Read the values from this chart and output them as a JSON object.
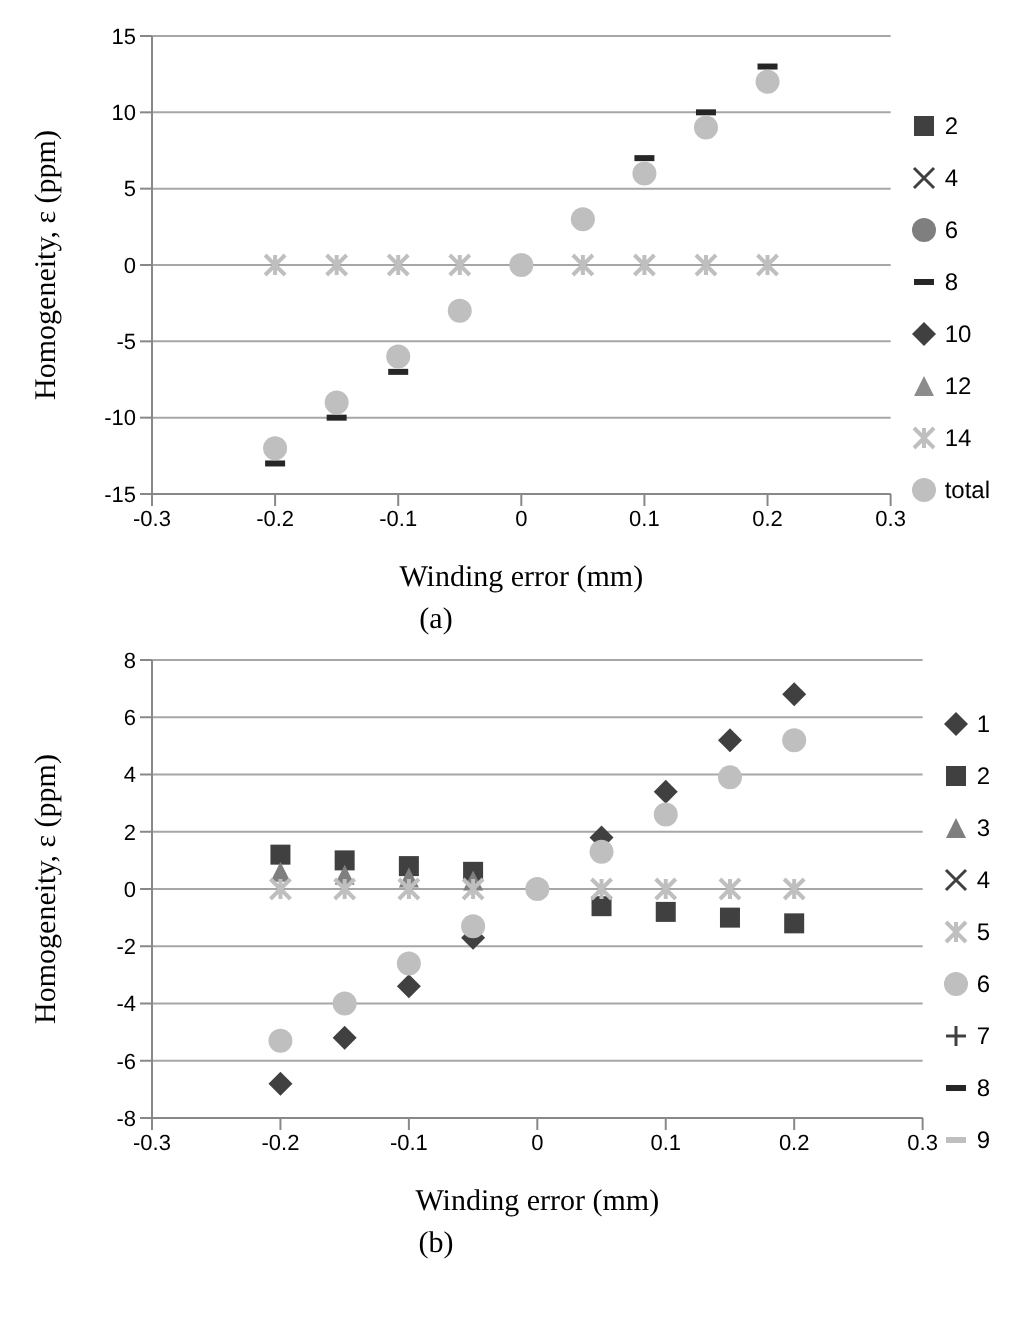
{
  "chart_data": [
    {
      "type": "scatter",
      "annotations": [
        "(a)"
      ],
      "xlabel": "Winding error (mm)",
      "ylabel": "Homogeneity, ε (ppm)",
      "x": [
        -0.2,
        -0.15,
        -0.1,
        -0.05,
        0,
        0.05,
        0.1,
        0.15,
        0.2
      ],
      "xlim": [
        -0.3,
        0.3
      ],
      "xticks": [
        -0.3,
        -0.2,
        -0.1,
        0,
        0.1,
        0.2,
        0.3
      ],
      "ylim": [
        -15,
        15
      ],
      "yticks": [
        -15,
        -10,
        -5,
        0,
        5,
        10,
        15
      ],
      "grid": "y",
      "legend": "right",
      "series": [
        {
          "name": "2",
          "color": "#404040",
          "marker": "square",
          "values": [
            null,
            null,
            null,
            null,
            null,
            null,
            null,
            null,
            null
          ]
        },
        {
          "name": "4",
          "color": "#404040",
          "marker": "x",
          "values": [
            null,
            null,
            null,
            null,
            null,
            null,
            null,
            null,
            null
          ]
        },
        {
          "name": "6",
          "color": "#7f7f7f",
          "marker": "circle",
          "values": [
            null,
            null,
            null,
            null,
            null,
            null,
            null,
            null,
            null
          ]
        },
        {
          "name": "8",
          "color": "#262626",
          "values": [
            -13,
            -10,
            -7,
            null,
            null,
            null,
            7,
            10,
            13
          ]
        },
        {
          "name": "10",
          "color": "#404040",
          "marker": "diamond",
          "values": [
            null,
            null,
            null,
            null,
            null,
            null,
            null,
            null,
            null
          ]
        },
        {
          "name": "12",
          "color": "#8c8c8c",
          "marker": "triangle",
          "values": [
            null,
            null,
            null,
            null,
            null,
            null,
            null,
            null,
            null
          ]
        },
        {
          "name": "14",
          "color": "#bfbfbf",
          "marker": "cross",
          "values": [
            0,
            0,
            0,
            0,
            null,
            0,
            0,
            0,
            0
          ]
        },
        {
          "name": "total",
          "color": "#bfbfbf",
          "marker": "circle",
          "values": [
            -12,
            -9,
            -6,
            -3,
            0,
            3,
            6,
            9,
            12
          ]
        }
      ]
    },
    {
      "type": "scatter",
      "annotations": [
        "(b)"
      ],
      "xlabel": "Winding error (mm)",
      "ylabel": "Homogeneity, ε (ppm)",
      "x": [
        -0.2,
        -0.15,
        -0.1,
        -0.05,
        0,
        0.05,
        0.1,
        0.15,
        0.2
      ],
      "xlim": [
        -0.3,
        0.3
      ],
      "xticks": [
        -0.3,
        -0.2,
        -0.1,
        0,
        0.1,
        0.2,
        0.3
      ],
      "ylim": [
        -8,
        8
      ],
      "yticks": [
        -8,
        -6,
        -4,
        -2,
        0,
        2,
        4,
        6,
        8
      ],
      "grid": "y",
      "legend": "right",
      "series": [
        {
          "name": "1",
          "color": "#404040",
          "marker": "diamond",
          "values": [
            -6.8,
            -5.2,
            -3.4,
            -1.7,
            null,
            1.8,
            3.4,
            5.2,
            6.8
          ]
        },
        {
          "name": "2",
          "color": "#404040",
          "marker": "square",
          "values": [
            1.2,
            1.0,
            0.8,
            0.6,
            null,
            -0.6,
            -0.8,
            -1.0,
            -1.2
          ]
        },
        {
          "name": "3",
          "color": "#7f7f7f",
          "marker": "triangle",
          "values": [
            0.6,
            0.5,
            0.4,
            0.3,
            null,
            null,
            null,
            null,
            null
          ]
        },
        {
          "name": "4",
          "color": "#404040",
          "marker": "x",
          "values": [
            null,
            null,
            null,
            null,
            null,
            null,
            null,
            null,
            null
          ]
        },
        {
          "name": "5",
          "color": "#bfbfbf",
          "marker": "cross",
          "values": [
            0,
            0,
            0,
            0,
            null,
            0,
            0,
            0,
            0
          ]
        },
        {
          "name": "6",
          "color": "#bfbfbf",
          "marker": "circle",
          "values": [
            -5.3,
            -4,
            -2.6,
            -1.3,
            0,
            1.3,
            2.6,
            3.9,
            5.2
          ]
        },
        {
          "name": "7",
          "color": "#404040",
          "marker": "plus",
          "values": [
            null,
            null,
            null,
            null,
            null,
            null,
            null,
            null,
            null
          ]
        },
        {
          "name": "8",
          "color": "#262626",
          "values": [
            null,
            null,
            null,
            null,
            null,
            null,
            null,
            null,
            null
          ]
        },
        {
          "name": "9",
          "color": "#bfbfbf",
          "values": [
            null,
            null,
            null,
            null,
            null,
            null,
            null,
            null,
            null
          ]
        }
      ]
    }
  ]
}
